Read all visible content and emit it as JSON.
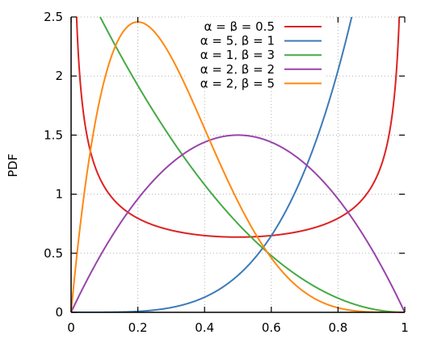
{
  "chart_data": {
    "type": "line",
    "title": "",
    "xlabel": "",
    "ylabel": "PDF",
    "xlim": [
      0,
      1
    ],
    "ylim": [
      0,
      2.5
    ],
    "xticks": [
      "0",
      "0.2",
      "0.4",
      "0.6",
      "0.8",
      "1"
    ],
    "yticks": [
      "0",
      "0.5",
      "1",
      "1.5",
      "2",
      "2.5"
    ],
    "grid": true,
    "legend_position": "top-right",
    "series": [
      {
        "name": "α = β = 0.5",
        "alpha": 0.5,
        "beta": 0.5,
        "color": "#dd2222"
      },
      {
        "name": "α = 5, β = 1",
        "alpha": 5,
        "beta": 1,
        "color": "#3d7ab8"
      },
      {
        "name": "α = 1, β = 3",
        "alpha": 1,
        "beta": 3,
        "color": "#44aa44"
      },
      {
        "name": "α = 2, β = 2",
        "alpha": 2,
        "beta": 2,
        "color": "#9944aa"
      },
      {
        "name": "α = 2, β = 5",
        "alpha": 2,
        "beta": 5,
        "color": "#ff8811"
      }
    ]
  }
}
